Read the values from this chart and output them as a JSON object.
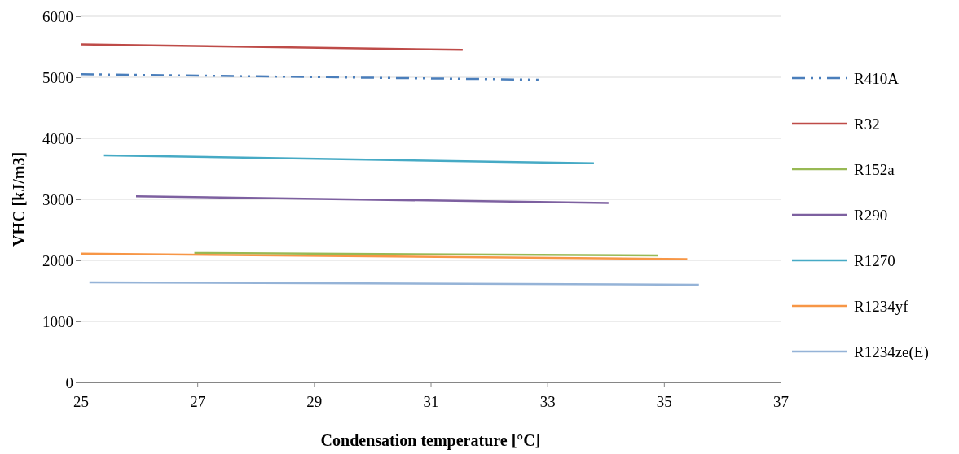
{
  "chart_data": {
    "type": "line",
    "xlabel": "Condensation temperature [°C]",
    "ylabel": "VHC [kJ/m3]",
    "xlim": [
      25,
      37
    ],
    "xticks": [
      25,
      27,
      29,
      31,
      33,
      35,
      37
    ],
    "ylim": [
      0,
      6000
    ],
    "yticks": [
      0,
      1000,
      2000,
      3000,
      4000,
      5000,
      6000
    ],
    "grid": "y",
    "legend": "right",
    "marker": "none",
    "series": [
      {
        "name": "R410A",
        "color": "#4a7ebb",
        "line_style": "dashed",
        "x": [
          25,
          32.85
        ],
        "values": [
          5050,
          4960
        ]
      },
      {
        "name": "R32",
        "color": "#be4b48",
        "x": [
          25,
          31.55
        ],
        "values": [
          5540,
          5450
        ]
      },
      {
        "name": "R152a",
        "color": "#98b954",
        "x": [
          26.95,
          34.9
        ],
        "values": [
          2120,
          2080
        ]
      },
      {
        "name": "R290",
        "color": "#7d60a0",
        "x": [
          25.95,
          34.05
        ],
        "values": [
          3050,
          2940
        ]
      },
      {
        "name": "R1270",
        "color": "#46aac5",
        "x": [
          25.4,
          33.8
        ],
        "values": [
          3720,
          3590
        ]
      },
      {
        "name": "R1234yf",
        "color": "#f79646",
        "x": [
          25,
          35.4
        ],
        "values": [
          2110,
          2020
        ]
      },
      {
        "name": "R1234ze(E)",
        "color": "#95b3d7",
        "x": [
          25.15,
          35.6
        ],
        "values": [
          1640,
          1600
        ]
      }
    ]
  }
}
